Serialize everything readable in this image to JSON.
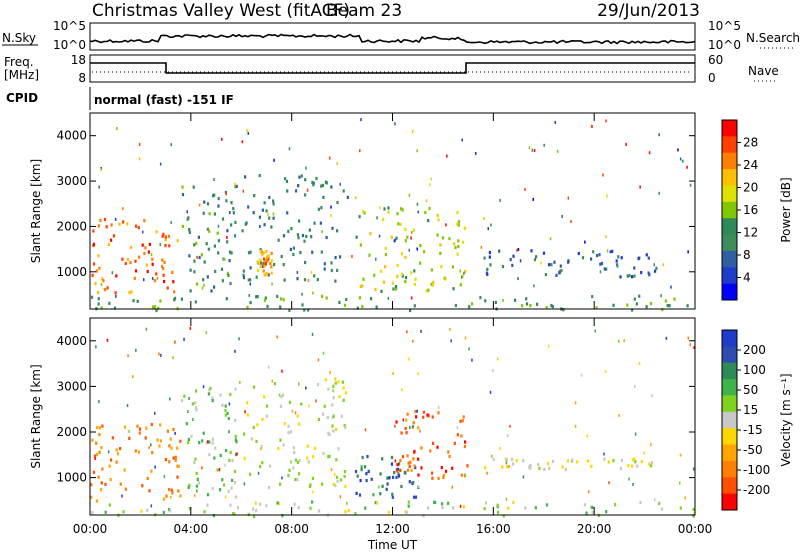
{
  "header": {
    "title": "Christmas Valley West (fitACF)",
    "beam": "Beam 23",
    "date": "29/Jun/2013"
  },
  "top_panels": {
    "nsky_label": "N.Sky",
    "nsky_scale": [
      "10^5",
      "10^0"
    ],
    "nsearch_label": "N.Search",
    "nsearch_scale": [
      "10^5",
      "10^0"
    ],
    "freq_label": [
      "Freq.",
      "[MHz]"
    ],
    "freq_scale": [
      "18",
      "8"
    ],
    "nave_label": "Nave",
    "nave_scale": [
      "60",
      "0"
    ],
    "cpid_label": "CPID",
    "cpid_text": "normal (fast) -151 IF"
  },
  "chart_data": [
    {
      "type": "heatmap",
      "name": "power",
      "ylabel": "Slant Range [km]",
      "xlabel": "",
      "x_ticks": [
        "00:00",
        "04:00",
        "08:00",
        "12:00",
        "16:00",
        "20:00",
        "00:00"
      ],
      "x_range_hours": [
        0,
        24
      ],
      "y_ticks": [
        1000,
        2000,
        3000,
        4000
      ],
      "ylim": [
        180,
        4500
      ],
      "colorbar": {
        "label": "Power [dB]",
        "ticks": [
          "28",
          "24",
          "20",
          "16",
          "12",
          "8",
          "4"
        ],
        "colors": [
          "#ff0000",
          "#ff4000",
          "#ff7f00",
          "#ffbf00",
          "#e0e000",
          "#80c800",
          "#2e8b57",
          "#3c8c5c",
          "#2f5fa0",
          "#1e3cc8",
          "#0000ff"
        ]
      },
      "regions": [
        {
          "t0": 0.0,
          "t1": 3.6,
          "r0": 500,
          "r1": 2200,
          "level": 0.85
        },
        {
          "t0": 3.6,
          "t1": 5.8,
          "r0": 600,
          "r1": 3000,
          "level": 0.35
        },
        {
          "t0": 6.0,
          "t1": 10.2,
          "r0": 800,
          "r1": 3200,
          "level": 0.3
        },
        {
          "t0": 6.6,
          "t1": 7.2,
          "r0": 950,
          "r1": 1500,
          "level": 0.75
        },
        {
          "t0": 10.5,
          "t1": 15.0,
          "r0": 600,
          "r1": 2500,
          "level": 0.55
        },
        {
          "t0": 15.6,
          "t1": 22.5,
          "r0": 900,
          "r1": 1500,
          "level": 0.2
        },
        {
          "t0": 0.0,
          "t1": 24.0,
          "r0": 180,
          "r1": 500,
          "level": 0.4
        }
      ]
    },
    {
      "type": "heatmap",
      "name": "velocity",
      "ylabel": "Slant Range [km]",
      "xlabel": "Time UT",
      "x_ticks": [
        "00:00",
        "04:00",
        "08:00",
        "12:00",
        "16:00",
        "20:00",
        "00:00"
      ],
      "x_range_hours": [
        0,
        24
      ],
      "y_ticks": [
        1000,
        2000,
        3000,
        4000
      ],
      "ylim": [
        180,
        4500
      ],
      "colorbar": {
        "label": "Velocity [m s⁻¹]",
        "ticks": [
          "200",
          "100",
          "50",
          "15",
          "-15",
          "-50",
          "-100",
          "-200"
        ],
        "colors": [
          "#1e3cc8",
          "#2e4cb0",
          "#2e8b57",
          "#3cb44b",
          "#7ed321",
          "#c8c8c8",
          "#ffd700",
          "#ffa500",
          "#ff7f00",
          "#ff5000",
          "#ff0000"
        ]
      },
      "regions": [
        {
          "t0": 0.0,
          "t1": 3.6,
          "r0": 500,
          "r1": 2200,
          "vel": -120
        },
        {
          "t0": 3.6,
          "t1": 5.8,
          "r0": 600,
          "r1": 3000,
          "vel": 40
        },
        {
          "t0": 6.0,
          "t1": 10.2,
          "r0": 800,
          "r1": 3200,
          "vel": 0
        },
        {
          "t0": 10.5,
          "t1": 13.0,
          "r0": 600,
          "r1": 1500,
          "vel": 150
        },
        {
          "t0": 12.0,
          "t1": 15.0,
          "r0": 1000,
          "r1": 2500,
          "vel": -150
        },
        {
          "t0": 15.6,
          "t1": 22.5,
          "r0": 1200,
          "r1": 1450,
          "vel": 0
        },
        {
          "t0": 0.0,
          "t1": 24.0,
          "r0": 180,
          "r1": 500,
          "vel": 25
        }
      ]
    }
  ]
}
